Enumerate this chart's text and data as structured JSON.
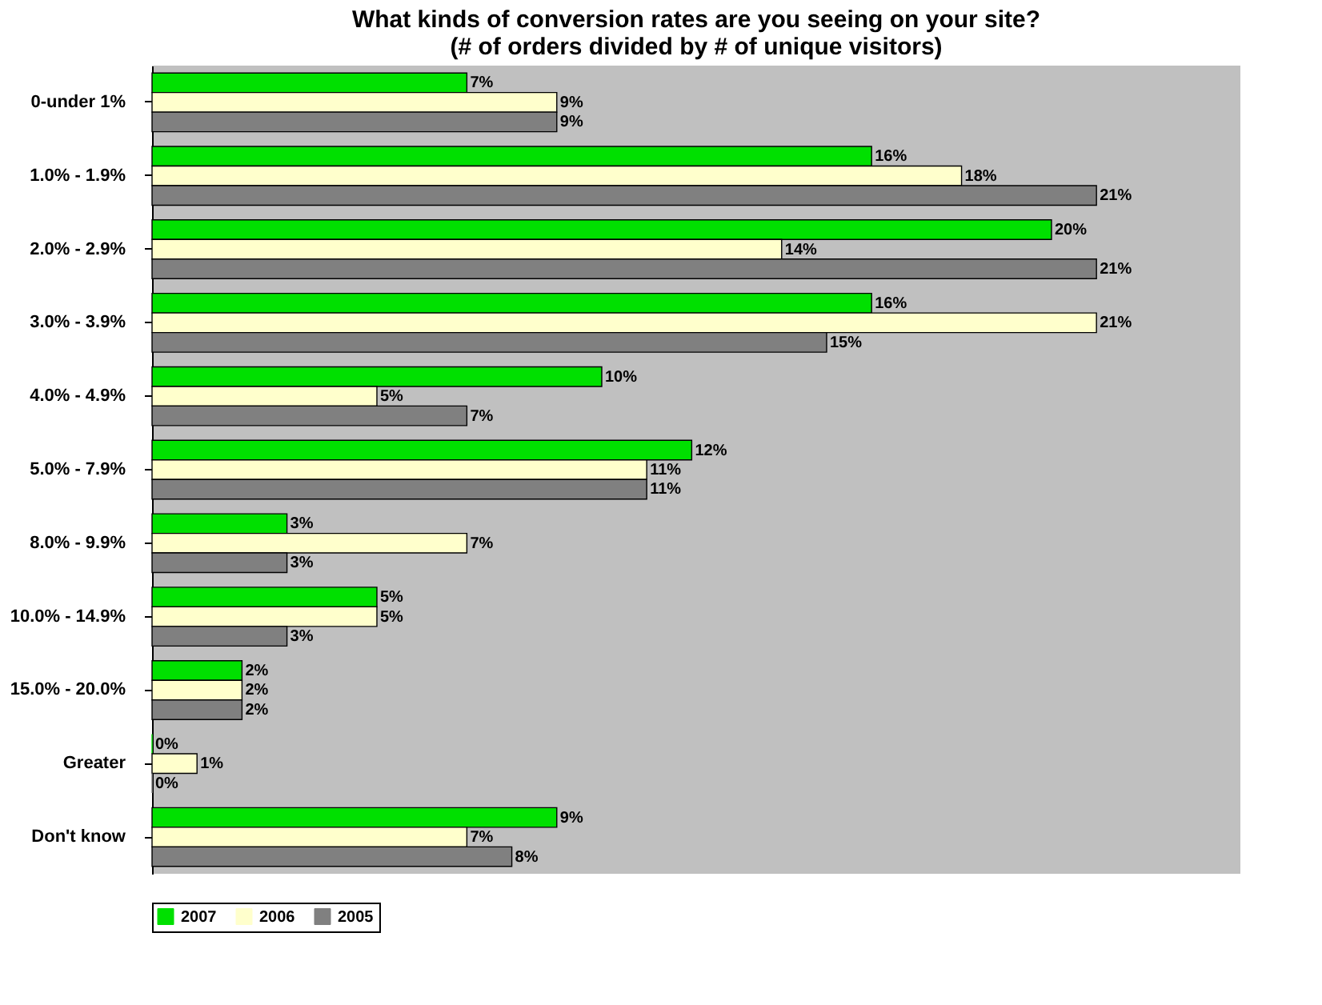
{
  "chart_data": {
    "type": "bar",
    "orientation": "horizontal",
    "title": [
      "What kinds of conversion rates are you seeing on your site?",
      "(# of orders divided by # of unique visitors)"
    ],
    "categories": [
      "0-under 1%",
      "1.0% - 1.9%",
      "2.0% - 2.9%",
      "3.0% - 3.9%",
      "4.0% - 4.9%",
      "5.0% - 7.9%",
      "8.0% - 9.9%",
      "10.0% - 14.9%",
      "15.0% - 20.0%",
      "Greater",
      "Don't know"
    ],
    "xlim": [
      0,
      24.2
    ],
    "tick_labels": "y",
    "grid": false,
    "legend": "bottom",
    "series": [
      {
        "name": "2007",
        "color": "#00e000",
        "values": [
          7,
          16,
          20,
          16,
          10,
          12,
          3,
          5,
          2,
          0,
          9
        ],
        "value_labels": [
          "7%",
          "16%",
          "20%",
          "16%",
          "10%",
          "12%",
          "3%",
          "5%",
          "2%",
          "0%",
          "9%"
        ]
      },
      {
        "name": "2006",
        "color": "#ffffcc",
        "values": [
          9,
          18,
          14,
          21,
          5,
          11,
          7,
          5,
          2,
          1,
          7
        ],
        "value_labels": [
          "9%",
          "18%",
          "14%",
          "21%",
          "5%",
          "11%",
          "7%",
          "5%",
          "2%",
          "1%",
          "7%"
        ]
      },
      {
        "name": "2005",
        "color": "#808080",
        "values": [
          9,
          21,
          21,
          15,
          7,
          11,
          3,
          3,
          2,
          0,
          8
        ],
        "value_labels": [
          "9%",
          "21%",
          "21%",
          "15%",
          "7%",
          "11%",
          "3%",
          "3%",
          "2%",
          "0%",
          "8%"
        ]
      }
    ]
  }
}
